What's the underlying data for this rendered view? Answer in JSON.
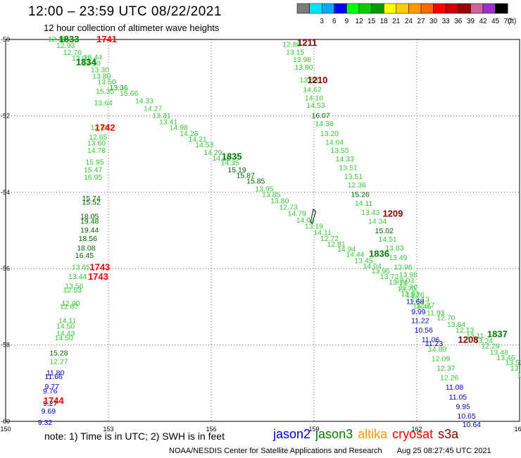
{
  "header": {
    "title": "12:00 – 23:59 UTC 08/22/2021",
    "subtitle": "12 hour collection of altimeter wave heights"
  },
  "legend": {
    "unit": "(ft)",
    "scale": [
      {
        "label": "",
        "color": "#7a7a7a"
      },
      {
        "label": "3",
        "color": "#00e5ff"
      },
      {
        "label": "6",
        "color": "#00aaff"
      },
      {
        "label": "9",
        "color": "#0000ff"
      },
      {
        "label": "12",
        "color": "#00ff00"
      },
      {
        "label": "15",
        "color": "#00cc00"
      },
      {
        "label": "18",
        "color": "#009900"
      },
      {
        "label": "21",
        "color": "#ffff00"
      },
      {
        "label": "24",
        "color": "#ffcc00"
      },
      {
        "label": "27",
        "color": "#ff9900"
      },
      {
        "label": "30",
        "color": "#ff6600"
      },
      {
        "label": "33",
        "color": "#ff0000"
      },
      {
        "label": "36",
        "color": "#cc0000"
      },
      {
        "label": "39",
        "color": "#990000"
      },
      {
        "label": "42",
        "color": "#cc6699"
      },
      {
        "label": "45",
        "color": "#9933cc"
      },
      {
        "label": "70",
        "color": "#000000"
      }
    ]
  },
  "axes": {
    "x_ticks": [
      "150",
      "153",
      "156",
      "159",
      "162",
      "165"
    ],
    "y_ticks": [
      "-50",
      "-52",
      "-54",
      "-56",
      "-58",
      "-60"
    ]
  },
  "passes": [
    {
      "label": "1741",
      "lon": 152.95,
      "lat": -49.98,
      "color": "#ff0000"
    },
    {
      "label": "1833",
      "lon": 151.85,
      "lat": -49.98,
      "color": "#008000"
    },
    {
      "label": "1834",
      "lon": 152.35,
      "lat": -50.58,
      "color": "#008000"
    },
    {
      "label": "1742",
      "lon": 152.9,
      "lat": -52.3,
      "color": "#ff0000"
    },
    {
      "label": "1835",
      "lon": 156.6,
      "lat": -53.05,
      "color": "#008000"
    },
    {
      "label": "1743",
      "lon": 152.75,
      "lat": -55.95,
      "color": "#ff0000"
    },
    {
      "label": "1743",
      "lon": 152.7,
      "lat": -56.2,
      "color": "#ff0000"
    },
    {
      "label": "1744",
      "lon": 151.4,
      "lat": -59.45,
      "color": "#ff0000"
    },
    {
      "label": "1211",
      "lon": 158.8,
      "lat": -50.07,
      "color": "#8b0000"
    },
    {
      "label": "1210",
      "lon": 159.1,
      "lat": -51.05,
      "color": "#8b0000"
    },
    {
      "label": "1209",
      "lon": 161.3,
      "lat": -54.55,
      "color": "#8b0000"
    },
    {
      "label": "1836",
      "lon": 160.9,
      "lat": -55.6,
      "color": "#008000"
    },
    {
      "label": "1837",
      "lon": 164.35,
      "lat": -57.7,
      "color": "#008000"
    },
    {
      "label": "1208",
      "lon": 163.5,
      "lat": -57.85,
      "color": "#8b0000"
    }
  ],
  "tracks": [
    {
      "name": "track-a",
      "points": [
        [
          "12.48",
          151.5,
          -49.98,
          "#33cc33"
        ],
        [
          "12.93",
          151.75,
          -50.15,
          "#33cc33"
        ],
        [
          "12.76",
          151.95,
          -50.33,
          "#33cc33"
        ],
        [
          "13.01",
          152.2,
          -50.48,
          "#33cc33"
        ],
        [
          "13.44",
          152.55,
          -50.45,
          "#33cc33"
        ],
        [
          "13.30",
          152.5,
          -50.62,
          "#33cc33"
        ],
        [
          "13.30",
          152.75,
          -50.78,
          "#33cc33"
        ],
        [
          "13.80",
          152.8,
          -50.95,
          "#33cc33"
        ],
        [
          "13.50",
          152.95,
          -51.1,
          "#33cc33"
        ],
        [
          "13.36",
          153.3,
          -51.25,
          "#00aa00"
        ],
        [
          "15.35",
          152.9,
          -51.35,
          "#33cc33"
        ],
        [
          "15.66",
          153.6,
          -51.4,
          "#33cc33"
        ],
        [
          "13.64",
          152.85,
          -51.65,
          "#33cc33"
        ],
        [
          "14.33",
          154.05,
          -51.6,
          "#33cc33"
        ],
        [
          "14.27",
          154.3,
          -51.8,
          "#33cc33"
        ],
        [
          "13.31",
          154.55,
          -51.98,
          "#33cc33"
        ],
        [
          "13.41",
          154.75,
          -52.15,
          "#33cc33"
        ],
        [
          "14.98",
          155.05,
          -52.3,
          "#33cc33"
        ],
        [
          "14.28",
          155.35,
          -52.45,
          "#33cc33"
        ],
        [
          "14.21",
          155.6,
          -52.6,
          "#33cc33"
        ],
        [
          "14.53",
          155.8,
          -52.75,
          "#33cc33"
        ],
        [
          "14.29",
          156.05,
          -52.95,
          "#33cc33"
        ],
        [
          "14.12",
          156.3,
          -53.1,
          "#33cc33"
        ],
        [
          "14.35",
          156.55,
          -53.22,
          "#33cc33"
        ],
        [
          "15.19",
          156.75,
          -53.4,
          "#006600"
        ],
        [
          "15.87",
          157.0,
          -53.55,
          "#006600"
        ],
        [
          "15.85",
          157.3,
          -53.7,
          "#006600"
        ],
        [
          "13.95",
          157.55,
          -53.9,
          "#33cc33"
        ],
        [
          "13.85",
          157.75,
          -54.05,
          "#33cc33"
        ],
        [
          "13.80",
          158.0,
          -54.22,
          "#33cc33"
        ],
        [
          "12.73",
          158.25,
          -54.38,
          "#33cc33"
        ],
        [
          "14.79",
          158.5,
          -54.55,
          "#33cc33"
        ],
        [
          "14.05",
          158.75,
          -54.72,
          "#33cc33"
        ],
        [
          "13.19",
          159.0,
          -54.88,
          "#33cc33"
        ],
        [
          "14.11",
          159.25,
          -55.05,
          "#33cc33"
        ],
        [
          "12.72",
          159.45,
          -55.2,
          "#33cc33"
        ],
        [
          "12.81",
          159.65,
          -55.35,
          "#33cc33"
        ],
        [
          "14.94",
          159.95,
          -55.48,
          "#33cc33"
        ],
        [
          "14.44",
          160.2,
          -55.62,
          "#33cc33"
        ],
        [
          "13.45",
          160.45,
          -55.78,
          "#33cc33"
        ],
        [
          "14.04",
          160.7,
          -55.92,
          "#33cc33"
        ],
        [
          "13.96",
          160.95,
          -56.05,
          "#33cc33"
        ],
        [
          "13.72",
          161.2,
          -56.2,
          "#33cc33"
        ],
        [
          "13.14",
          161.45,
          -56.35,
          "#33cc33"
        ],
        [
          "13.70",
          161.7,
          -56.52,
          "#33cc33"
        ],
        [
          "13.26",
          161.95,
          -56.68,
          "#33cc33"
        ],
        [
          "13.13",
          162.1,
          -56.8,
          "#33cc33"
        ],
        [
          "13.45",
          162.15,
          -56.98,
          "#33cc33"
        ],
        [
          "11.93",
          162.55,
          -57.15,
          "#33cc33"
        ],
        [
          "12.70",
          162.85,
          -57.28,
          "#33cc33"
        ],
        [
          "13.84",
          163.15,
          -57.45,
          "#33cc33"
        ],
        [
          "12.13",
          163.4,
          -57.6,
          "#33cc33"
        ],
        [
          "13.11",
          163.7,
          -57.75,
          "#33cc33"
        ],
        [
          "13.24",
          163.95,
          -57.88,
          "#33cc33"
        ],
        [
          "12.29",
          164.15,
          -58.02,
          "#33cc33"
        ],
        [
          "13.48",
          164.4,
          -58.18,
          "#33cc33"
        ],
        [
          "13.46",
          164.6,
          -58.32,
          "#33cc33"
        ],
        [
          "13.52",
          164.85,
          -58.45,
          "#33cc33"
        ],
        [
          "13.86",
          165.0,
          -58.6,
          "#33cc33"
        ],
        [
          "13",
          165.05,
          -58.78,
          "#33cc33"
        ]
      ]
    },
    {
      "name": "track-b",
      "points": [
        [
          "12.88",
          158.35,
          -50.12,
          "#33cc33"
        ],
        [
          "13.15",
          158.45,
          -50.32,
          "#33cc33"
        ],
        [
          "13.98",
          158.65,
          -50.52,
          "#33cc33"
        ],
        [
          "13.80",
          158.7,
          -50.72,
          "#33cc33"
        ],
        [
          "13.83",
          158.85,
          -51.05,
          "#33cc33"
        ],
        [
          "14.62",
          158.95,
          -51.3,
          "#33cc33"
        ],
        [
          "14.10",
          159.0,
          -51.52,
          "#33cc33"
        ],
        [
          "14.53",
          159.05,
          -51.72,
          "#33cc33"
        ],
        [
          "16.07",
          159.2,
          -51.98,
          "#006600"
        ],
        [
          "14.38",
          159.3,
          -52.2,
          "#33cc33"
        ],
        [
          "13.20",
          159.45,
          -52.45,
          "#33cc33"
        ],
        [
          "14.04",
          159.6,
          -52.68,
          "#33cc33"
        ],
        [
          "13.55",
          159.75,
          -52.9,
          "#33cc33"
        ],
        [
          "14.33",
          159.9,
          -53.12,
          "#33cc33"
        ],
        [
          "13.51",
          160.0,
          -53.35,
          "#33cc33"
        ],
        [
          "13.51",
          160.15,
          -53.58,
          "#33cc33"
        ],
        [
          "12.36",
          160.25,
          -53.8,
          "#33cc33"
        ],
        [
          "15.26",
          160.35,
          -54.05,
          "#006600"
        ],
        [
          "14.11",
          160.45,
          -54.28,
          "#33cc33"
        ],
        [
          "13.43",
          160.65,
          -54.52,
          "#33cc33"
        ],
        [
          "14.34",
          160.85,
          -54.75,
          "#33cc33"
        ],
        [
          "15.02",
          161.05,
          -55.0,
          "#006600"
        ],
        [
          "14.51",
          161.15,
          -55.22,
          "#33cc33"
        ],
        [
          "13.83",
          161.35,
          -55.45,
          "#33cc33"
        ],
        [
          "13.49",
          161.45,
          -55.7,
          "#33cc33"
        ],
        [
          "13.96",
          161.6,
          -55.95,
          "#33cc33"
        ],
        [
          "13.98",
          161.75,
          -56.15,
          "#33cc33"
        ],
        [
          "13.03",
          161.65,
          -56.3,
          "#33cc33"
        ],
        [
          "12.70",
          161.75,
          -56.48,
          "#33cc33"
        ],
        [
          "12.93",
          161.8,
          -56.65,
          "#33cc33"
        ],
        [
          "11.68",
          161.95,
          -56.85,
          "#0000cc"
        ],
        [
          "12.27",
          162.25,
          -56.95,
          "#33cc33"
        ],
        [
          "9.99",
          162.05,
          -57.12,
          "#0000cc"
        ],
        [
          "11.22",
          162.1,
          -57.35,
          "#0000cc"
        ],
        [
          "10.56",
          162.2,
          -57.6,
          "#0000cc"
        ],
        [
          "11.06",
          162.4,
          -57.85,
          "#0000cc"
        ],
        [
          "11.23",
          162.5,
          -57.95,
          "#0000cc"
        ],
        [
          "14.80",
          162.6,
          -58.1,
          "#33cc33"
        ],
        [
          "12.09",
          162.7,
          -58.35,
          "#33cc33"
        ],
        [
          "12.37",
          162.85,
          -58.6,
          "#33cc33"
        ],
        [
          "12.26",
          162.95,
          -58.85,
          "#33cc33"
        ],
        [
          "11.08",
          163.1,
          -59.1,
          "#0000cc"
        ],
        [
          "11.05",
          163.2,
          -59.35,
          "#0000cc"
        ],
        [
          "9.95",
          163.35,
          -59.6,
          "#0000cc"
        ],
        [
          "10.65",
          163.45,
          -59.85,
          "#0000cc"
        ],
        [
          "10.64",
          163.6,
          -60.07,
          "#0000cc"
        ]
      ]
    },
    {
      "name": "track-c",
      "points": [
        [
          "12.88",
          152.75,
          -52.3,
          "#33cc33"
        ],
        [
          "12.65",
          152.7,
          -52.55,
          "#33cc33"
        ],
        [
          "13.60",
          152.65,
          -52.7,
          "#33cc33"
        ],
        [
          "14.78",
          152.65,
          -52.9,
          "#33cc33"
        ],
        [
          "15.95",
          152.6,
          -53.2,
          "#33cc33"
        ],
        [
          "15.47",
          152.55,
          -53.4,
          "#33cc33"
        ],
        [
          "16.95",
          152.55,
          -53.6,
          "#33cc33"
        ],
        [
          "15.74",
          152.5,
          -54.15,
          "#006600"
        ],
        [
          "15.52",
          152.5,
          -54.25,
          "#006600"
        ],
        [
          "18.05",
          152.45,
          -54.62,
          "#006600"
        ],
        [
          "19.48",
          152.45,
          -54.75,
          "#006600"
        ],
        [
          "19.44",
          152.45,
          -54.98,
          "#006600"
        ],
        [
          "18.56",
          152.4,
          -55.2,
          "#006600"
        ],
        [
          "18.08",
          152.35,
          -55.45,
          "#006600"
        ],
        [
          "16.45",
          152.3,
          -55.65,
          "#006600"
        ],
        [
          "13.65",
          152.2,
          -55.95,
          "#33cc33"
        ],
        [
          "13.44",
          152.1,
          -56.2,
          "#33cc33"
        ],
        [
          "13.56",
          152.0,
          -56.45,
          "#33cc33"
        ],
        [
          "12.53",
          151.95,
          -56.55,
          "#33cc33"
        ],
        [
          "12.90",
          151.9,
          -56.9,
          "#33cc33"
        ],
        [
          "12.67",
          151.85,
          -56.98,
          "#33cc33"
        ],
        [
          "14.11",
          151.8,
          -57.35,
          "#33cc33"
        ],
        [
          "14.50",
          151.75,
          -57.5,
          "#33cc33"
        ],
        [
          "14.43",
          151.75,
          -57.68,
          "#33cc33"
        ],
        [
          "14.50",
          151.7,
          -57.8,
          "#33cc33"
        ],
        [
          "15.28",
          151.55,
          -58.2,
          "#006600"
        ],
        [
          "12.27",
          151.55,
          -58.42,
          "#33cc33"
        ],
        [
          "11.80",
          151.45,
          -58.72,
          "#0000cc"
        ],
        [
          "11.66",
          151.4,
          -58.82,
          "#0000cc"
        ],
        [
          "9.77",
          151.35,
          -59.08,
          "#0000cc"
        ],
        [
          "9.76",
          151.3,
          -59.2,
          "#0000cc"
        ],
        [
          "9.27",
          151.3,
          -59.52,
          "#0000cc"
        ],
        [
          "9.69",
          151.25,
          -59.72,
          "#0000cc"
        ],
        [
          "9.32",
          151.15,
          -60.02,
          "#0000cc"
        ]
      ]
    }
  ],
  "note": "note:  1) Time is in UTC; 2) SWH is in feet",
  "satellites": [
    {
      "name": "jason2",
      "color": "#0000cc"
    },
    {
      "name": "jason3",
      "color": "#008000"
    },
    {
      "name": "altika",
      "color": "#ff9900"
    },
    {
      "name": "cryosat",
      "color": "#ff0000"
    },
    {
      "name": "s3a",
      "color": "#8b0000"
    }
  ],
  "credit": "NOAA/NESDIS Center for Satellite Applications and Research",
  "timestamp": "Aug 25 08:27:45 UTC 2021"
}
